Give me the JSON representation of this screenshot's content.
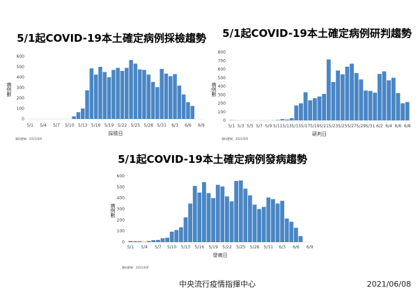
{
  "bar_color": "#4a86c5",
  "footer": {
    "org": "中央流行疫情指揮中心",
    "date": "2021/06/08"
  },
  "chart_data": [
    {
      "type": "bar",
      "title": "5/1起COVID-19本土確定病例採檢趨勢",
      "xlabel": "採檢日",
      "ylabel": "病例數",
      "source": "資料更新：2021/6/8",
      "ylim": [
        0,
        600
      ],
      "yticks": [
        0,
        100,
        200,
        300,
        400,
        500,
        600
      ],
      "xticks": [
        "5/1",
        "5/4",
        "5/7",
        "5/10",
        "5/13",
        "5/16",
        "5/19",
        "5/22",
        "5/25",
        "5/28",
        "5/31",
        "6/3",
        "6/6",
        "6/9"
      ],
      "tick_every": 3,
      "categories": [
        "5/1",
        "5/2",
        "5/3",
        "5/4",
        "5/5",
        "5/6",
        "5/7",
        "5/8",
        "5/9",
        "5/10",
        "5/11",
        "5/12",
        "5/13",
        "5/14",
        "5/15",
        "5/16",
        "5/17",
        "5/18",
        "5/19",
        "5/20",
        "5/21",
        "5/22",
        "5/23",
        "5/24",
        "5/25",
        "5/26",
        "5/27",
        "5/28",
        "5/29",
        "5/30",
        "5/31",
        "6/1",
        "6/2",
        "6/3",
        "6/4",
        "6/5",
        "6/6",
        "6/7",
        "6/8",
        "6/9"
      ],
      "values": [
        0,
        0,
        0,
        0,
        0,
        0,
        0,
        0,
        0,
        0,
        25,
        65,
        100,
        275,
        485,
        425,
        500,
        450,
        400,
        470,
        490,
        460,
        490,
        565,
        530,
        475,
        470,
        425,
        355,
        305,
        480,
        435,
        410,
        430,
        320,
        235,
        160,
        125,
        0,
        0
      ],
      "grid": false
    },
    {
      "type": "bar",
      "title": "5/1起COVID-19本土確定病例研判趨勢",
      "xlabel": "研判日",
      "ylabel": "病例數",
      "source": "資料更新：2021/6/8",
      "ylim": [
        0,
        800
      ],
      "yticks": [
        0,
        100,
        200,
        300,
        400,
        500,
        600,
        700,
        800
      ],
      "xticks": [
        "5/1",
        "5/3",
        "5/5",
        "5/7",
        "5/9",
        "5/11",
        "5/13",
        "5/15",
        "5/17",
        "5/19",
        "5/21",
        "5/23",
        "5/25",
        "5/27",
        "5/29",
        "5/31",
        "6/2",
        "6/4",
        "6/6",
        "6/8"
      ],
      "tick_every": 2,
      "categories": [
        "5/1",
        "5/2",
        "5/3",
        "5/4",
        "5/5",
        "5/6",
        "5/7",
        "5/8",
        "5/9",
        "5/10",
        "5/11",
        "5/12",
        "5/13",
        "5/14",
        "5/15",
        "5/16",
        "5/17",
        "5/18",
        "5/19",
        "5/20",
        "5/21",
        "5/22",
        "5/23",
        "5/24",
        "5/25",
        "5/26",
        "5/27",
        "5/28",
        "5/29",
        "5/30",
        "5/31",
        "6/1",
        "6/2",
        "6/3",
        "6/4",
        "6/5",
        "6/6",
        "6/7",
        "6/8"
      ],
      "values": [
        3,
        1,
        0,
        0,
        0,
        0,
        0,
        1,
        0,
        1,
        5,
        15,
        10,
        25,
        175,
        200,
        330,
        235,
        260,
        280,
        310,
        715,
        450,
        585,
        540,
        630,
        665,
        555,
        480,
        350,
        345,
        325,
        545,
        575,
        470,
        500,
        320,
        200,
        215
      ],
      "grid": false
    },
    {
      "type": "bar",
      "title": "5/1起COVID-19本土確定病例發病趨勢",
      "xlabel": "發病日",
      "ylabel": "病例數",
      "source": "資料更新：2021/6/8",
      "ylim": [
        0,
        600
      ],
      "yticks": [
        0,
        100,
        200,
        300,
        400,
        500,
        600
      ],
      "xticks": [
        "5/1",
        "5/4",
        "5/7",
        "5/10",
        "5/13",
        "5/16",
        "5/19",
        "5/22",
        "5/25",
        "5/28",
        "5/31",
        "6/3",
        "6/6",
        "6/9"
      ],
      "tick_every": 3,
      "categories": [
        "5/1",
        "5/2",
        "5/3",
        "5/4",
        "5/5",
        "5/6",
        "5/7",
        "5/8",
        "5/9",
        "5/10",
        "5/11",
        "5/12",
        "5/13",
        "5/14",
        "5/15",
        "5/16",
        "5/17",
        "5/18",
        "5/19",
        "5/20",
        "5/21",
        "5/22",
        "5/23",
        "5/24",
        "5/25",
        "5/26",
        "5/27",
        "5/28",
        "5/29",
        "5/30",
        "5/31",
        "6/1",
        "6/2",
        "6/3",
        "6/4",
        "6/5",
        "6/6",
        "6/7",
        "6/8",
        "6/9"
      ],
      "values": [
        10,
        8,
        8,
        2,
        10,
        18,
        20,
        35,
        40,
        95,
        110,
        135,
        225,
        350,
        510,
        450,
        545,
        445,
        400,
        520,
        505,
        415,
        370,
        555,
        560,
        485,
        425,
        340,
        300,
        320,
        405,
        390,
        350,
        375,
        215,
        185,
        130,
        55,
        0,
        0
      ],
      "grid": false
    }
  ]
}
